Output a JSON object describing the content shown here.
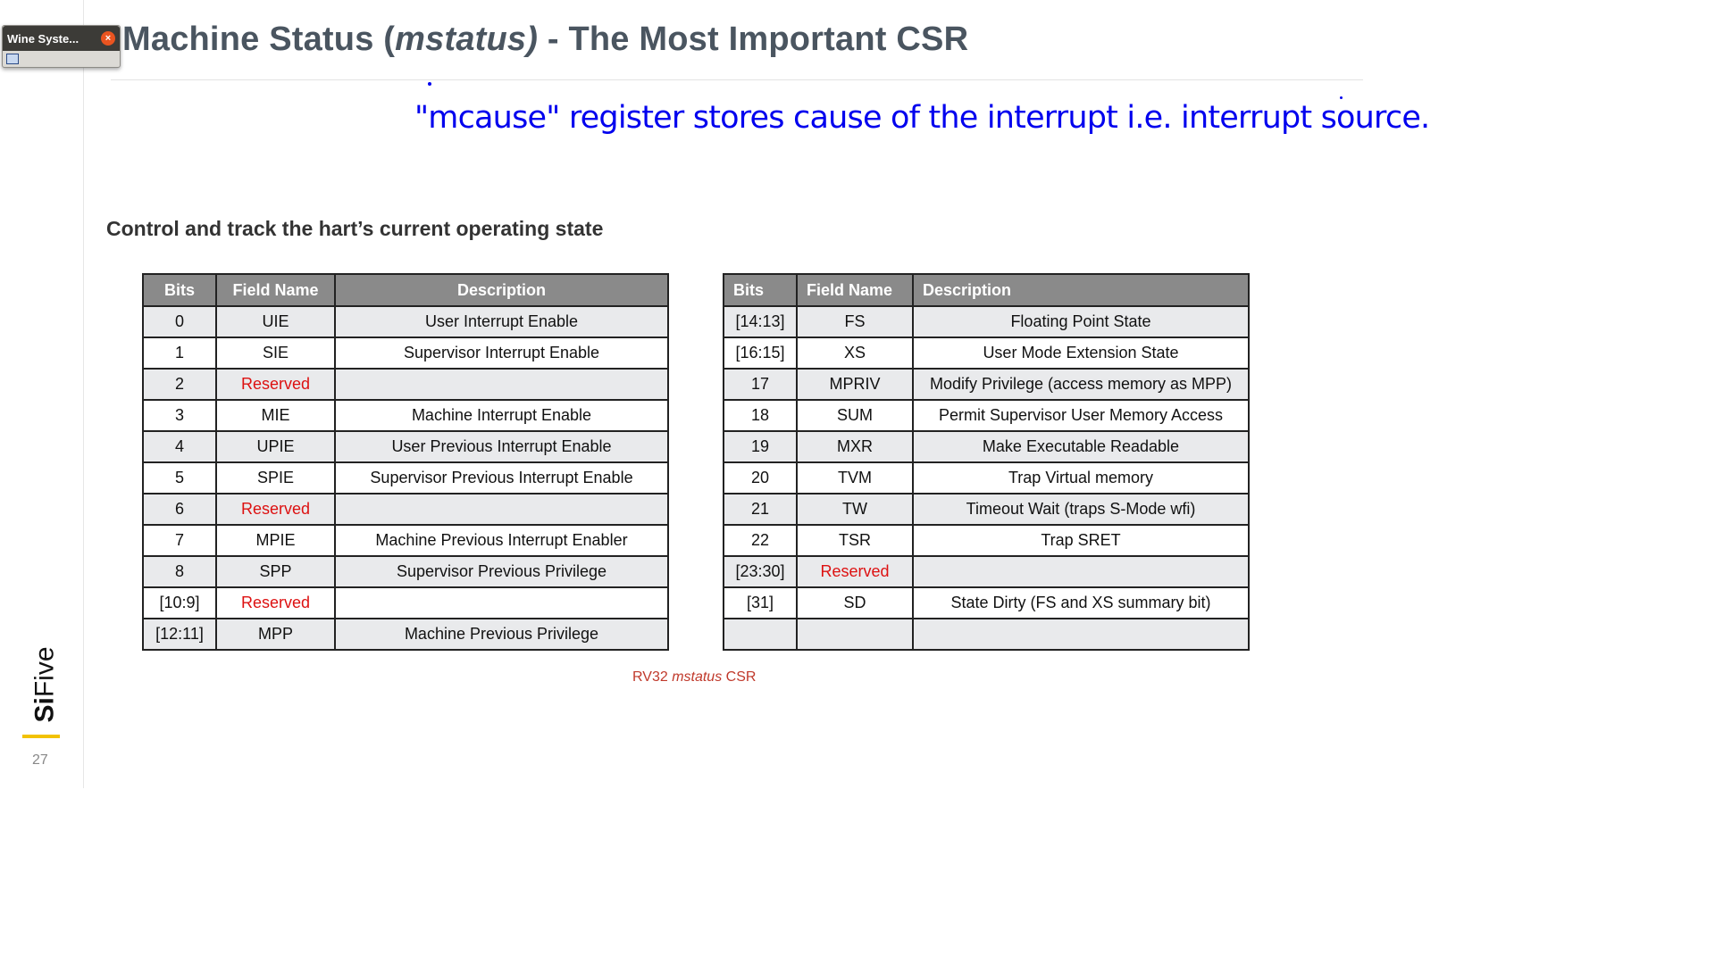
{
  "window": {
    "title": "Wine Syste...",
    "close_glyph": "×"
  },
  "slide": {
    "title_prefix": "Machine Status (",
    "title_italic": "mstatus)",
    "title_suffix": " - The Most Important CSR",
    "note": "\"mcause\" register stores cause of the interrupt i.e. interrupt source.",
    "subtitle": "Control and track the hart’s current operating state",
    "caption_prefix": "RV32 ",
    "caption_italic": "mstatus",
    "caption_suffix": " CSR",
    "page_number": "27",
    "brand_bold": "Si",
    "brand_rest": "Five"
  },
  "table1": {
    "headers": [
      "Bits",
      "Field Name",
      "Description"
    ],
    "rows": [
      [
        "0",
        "UIE",
        "User Interrupt Enable"
      ],
      [
        "1",
        "SIE",
        "Supervisor Interrupt Enable"
      ],
      [
        "2",
        "Reserved",
        ""
      ],
      [
        "3",
        "MIE",
        "Machine Interrupt Enable"
      ],
      [
        "4",
        "UPIE",
        "User Previous Interrupt Enable"
      ],
      [
        "5",
        "SPIE",
        "Supervisor Previous Interrupt Enable"
      ],
      [
        "6",
        "Reserved",
        ""
      ],
      [
        "7",
        "MPIE",
        "Machine Previous Interrupt Enabler"
      ],
      [
        "8",
        "SPP",
        "Supervisor Previous Privilege"
      ],
      [
        "[10:9]",
        "Reserved",
        ""
      ],
      [
        "[12:11]",
        "MPP",
        "Machine Previous Privilege"
      ]
    ]
  },
  "table2": {
    "headers": [
      "Bits",
      "Field Name",
      "Description"
    ],
    "rows": [
      [
        "[14:13]",
        "FS",
        "Floating Point State"
      ],
      [
        "[16:15]",
        "XS",
        "User Mode Extension State"
      ],
      [
        "17",
        "MPRIV",
        "Modify Privilege (access memory as MPP)"
      ],
      [
        "18",
        "SUM",
        "Permit Supervisor User Memory Access"
      ],
      [
        "19",
        "MXR",
        "Make Executable Readable"
      ],
      [
        "20",
        "TVM",
        "Trap Virtual memory"
      ],
      [
        "21",
        "TW",
        "Timeout Wait (traps S-Mode wfi)"
      ],
      [
        "22",
        "TSR",
        "Trap SRET"
      ],
      [
        "[23:30]",
        "Reserved",
        ""
      ],
      [
        "[31]",
        "SD",
        "State Dirty (FS and XS summary bit)"
      ],
      [
        "",
        "",
        ""
      ]
    ]
  },
  "colors": {
    "title": "#4a5560",
    "note": "#0000ee",
    "reserved": "#dd1111",
    "header_bg": "#8a8a8a",
    "brand_accent": "#f2c200"
  }
}
